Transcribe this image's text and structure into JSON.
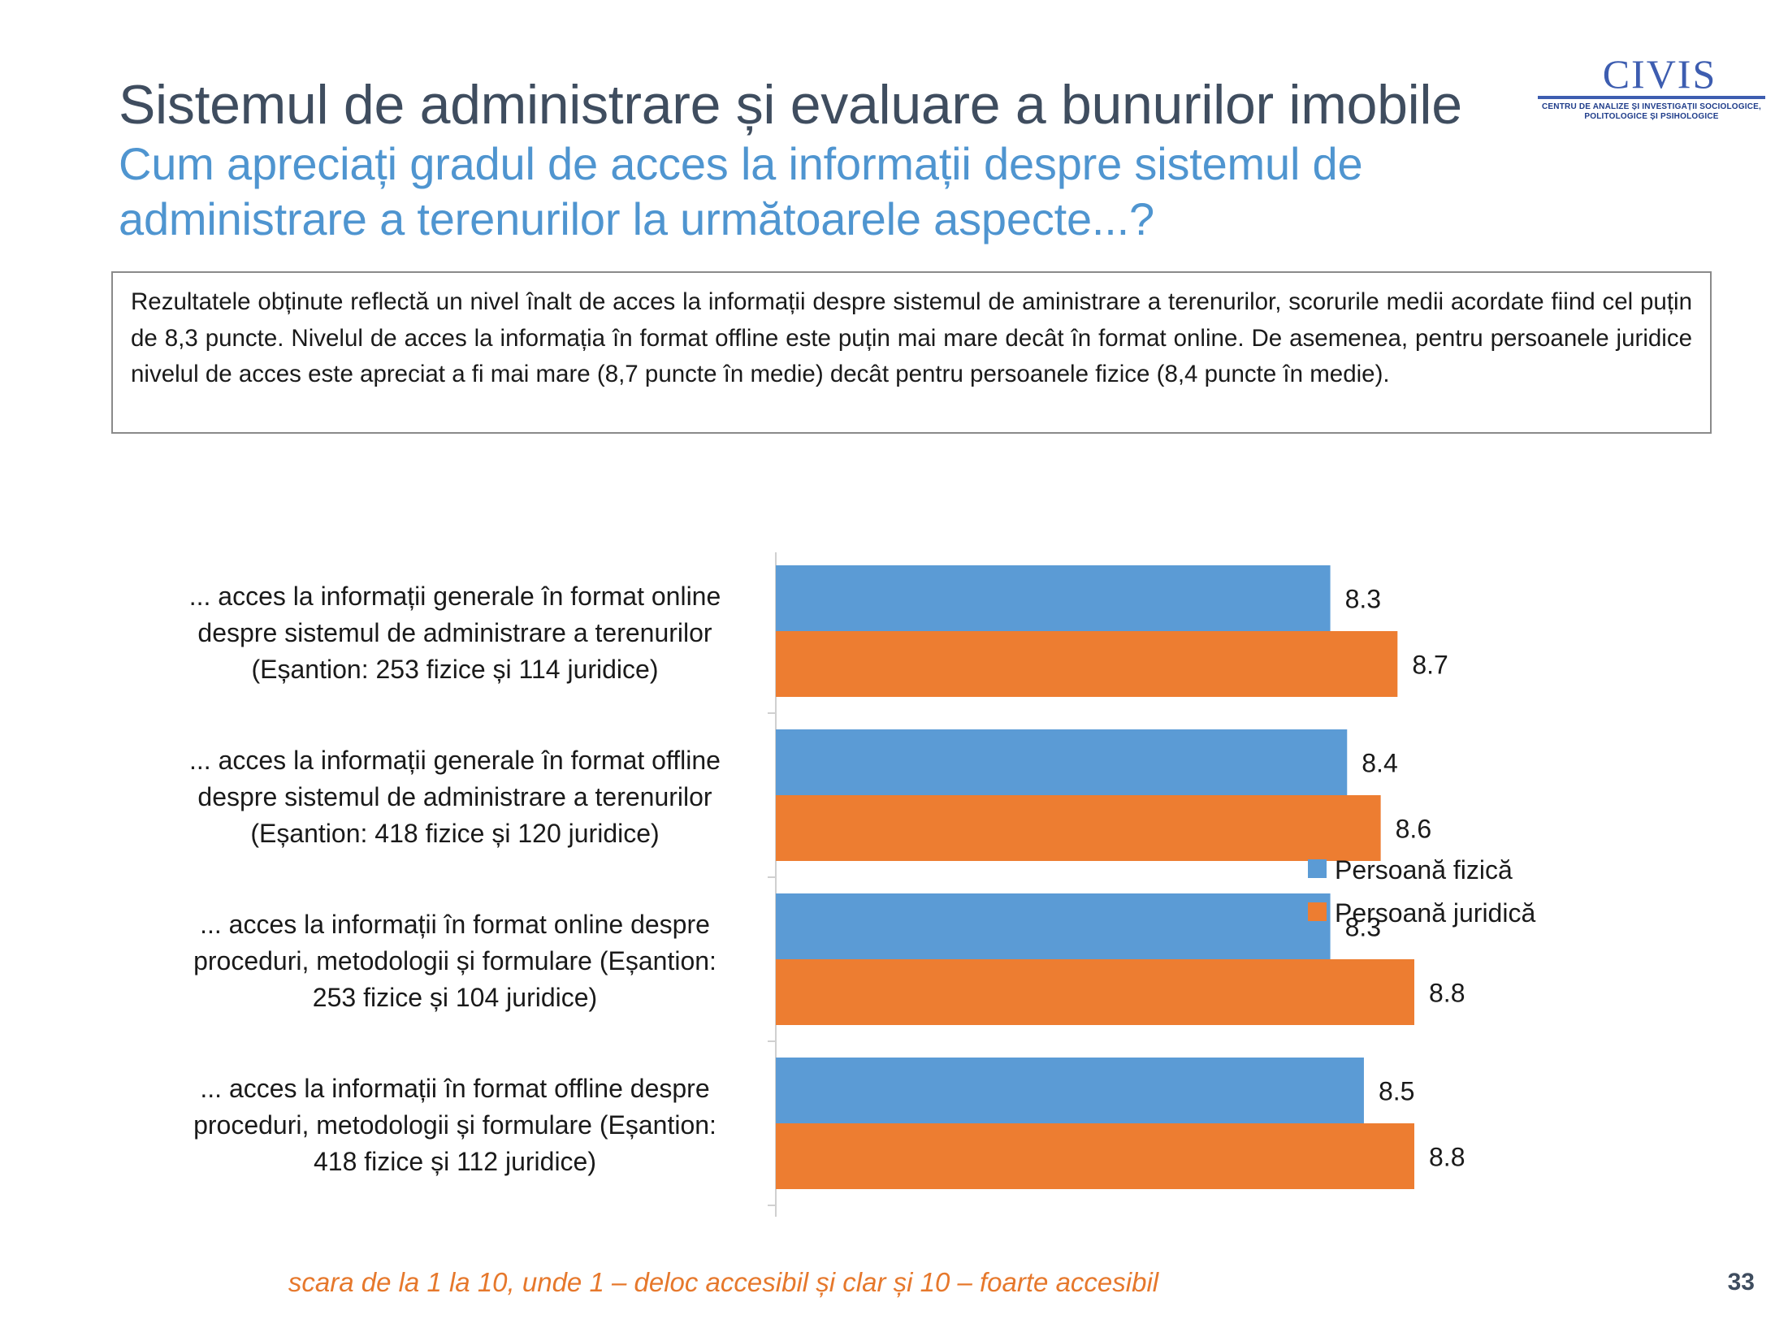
{
  "slide": {
    "title": "Sistemul de administrare și evaluare a bunurilor imobile",
    "subtitle": "Cum apreciați gradul de acces la informații despre sistemul de administrare a terenurilor la următoarele aspecte...?",
    "logo": {
      "word": "CIVIS",
      "subtitle_line1": "CENTRU DE ANALIZE ȘI INVESTIGAȚII SOCIOLOGICE,",
      "subtitle_line2": "POLITOLOGICE ȘI PSIHOLOGICE"
    },
    "summary": "Rezultatele obținute reflectă un nivel înalt de acces la informații despre sistemul de aministrare a terenurilor, scorurile medii acordate fiind cel puțin de 8,3 puncte. Nivelul de acces la informația în format offline este puțin mai mare decât în format online. De asemenea, pentru persoanele juridice nivelul de acces este apreciat a fi mai mare (8,7 puncte în medie) decât pentru persoanele fizice (8,4 puncte în medie).",
    "footnote": "scara de la 1 la 10, unde 1 – deloc accesibil și clar și 10 – foarte accesibil",
    "page_number": "33"
  },
  "chart_data": {
    "type": "bar",
    "orientation": "horizontal",
    "categories": [
      [
        "... acces la informații generale  în format online",
        "despre sistemul de administrare a terenurilor",
        "(Eșantion: 253 fizice și 114 juridice)"
      ],
      [
        "... acces la informații generale  în format offline",
        "despre sistemul de administrare a terenurilor",
        "(Eșantion: 418 fizice și 120 juridice)"
      ],
      [
        "... acces la informații  în format online despre",
        "proceduri, metodologii și formulare  (Eșantion:",
        "253 fizice și 104 juridice)"
      ],
      [
        "... acces la informații  în format offline despre",
        "proceduri, metodologii și formulare  (Eșantion:",
        "418 fizice și 112 juridice)"
      ]
    ],
    "series": [
      {
        "name": "Persoană fizică",
        "color": "#5b9bd5",
        "values": [
          8.3,
          8.4,
          8.3,
          8.5
        ],
        "labels": [
          "8.3",
          "8.4",
          "8.3",
          "8.5"
        ]
      },
      {
        "name": "Persoană juridică",
        "color": "#ed7d31",
        "values": [
          8.7,
          8.6,
          8.8,
          8.8
        ],
        "labels": [
          "8.7",
          "8.6",
          "8.8",
          "8.8"
        ]
      }
    ],
    "xlim": [
      5,
      10
    ],
    "axes_visible": false,
    "grid": false,
    "legend": "right",
    "data_labels": true
  }
}
